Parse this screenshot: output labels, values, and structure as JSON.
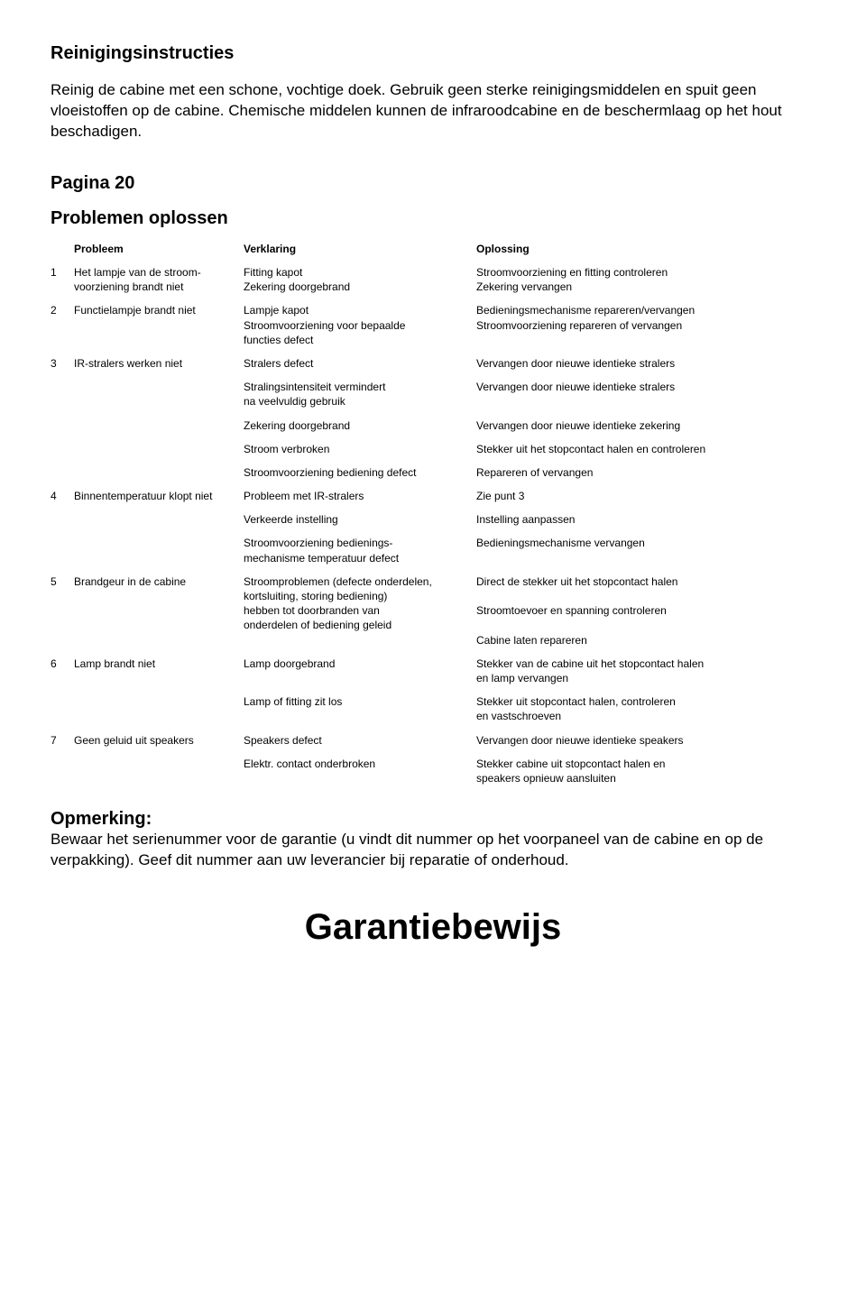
{
  "doc": {
    "title": "Reinigingsinstructies",
    "intro": "Reinig de cabine met een schone, vochtige doek. Gebruik geen sterke reinigingsmiddelen en spuit geen vloeistoffen op de cabine. Chemische middelen kunnen de infraroodcabine en de beschermlaag op het hout beschadigen.",
    "page_heading": "Pagina 20",
    "section_heading": "Problemen oplossen",
    "headers": {
      "problem": "Probleem",
      "explanation": "Verklaring",
      "solution": "Oplossing"
    },
    "rows": [
      {
        "n": "1",
        "problem": "Het lampje van de stroom-\nvoorziening brandt niet",
        "lines": [
          {
            "explanation": "Fitting kapot",
            "solution": "Stroomvoorziening en fitting controleren"
          },
          {
            "explanation": "Zekering doorgebrand",
            "solution": "Zekering vervangen"
          }
        ]
      },
      {
        "n": "2",
        "problem": "Functielampje brandt niet",
        "lines": [
          {
            "explanation": "Lampje kapot",
            "solution": "Bedieningsmechanisme repareren/vervangen"
          },
          {
            "explanation": "Stroomvoorziening voor bepaalde\nfuncties defect",
            "solution": "Stroomvoorziening repareren of vervangen"
          }
        ]
      },
      {
        "n": "3",
        "problem": "IR-stralers werken niet",
        "lines": [
          {
            "explanation": "Stralers defect",
            "solution": "Vervangen door nieuwe identieke stralers"
          }
        ],
        "sublines": [
          {
            "explanation": "Stralingsintensiteit vermindert\nna veelvuldig gebruik",
            "solution": "Vervangen door nieuwe identieke stralers"
          },
          {
            "explanation": "Zekering doorgebrand",
            "solution": "Vervangen door nieuwe identieke zekering"
          },
          {
            "explanation": "Stroom verbroken",
            "solution": "Stekker uit het stopcontact halen en controleren"
          },
          {
            "explanation": "Stroomvoorziening bediening defect",
            "solution": "Repareren of vervangen"
          }
        ]
      },
      {
        "n": "4",
        "problem": "Binnentemperatuur klopt niet",
        "lines": [
          {
            "explanation": "Probleem met IR-stralers",
            "solution": "Zie punt 3"
          }
        ],
        "sublines": [
          {
            "explanation": "Verkeerde instelling",
            "solution": "Instelling aanpassen"
          },
          {
            "explanation": "Stroomvoorziening bedienings-\nmechanisme temperatuur defect",
            "solution": "Bedieningsmechanisme vervangen"
          }
        ]
      },
      {
        "n": "5",
        "problem": "Brandgeur in de cabine",
        "lines": [
          {
            "explanation": "Stroomproblemen (defecte onderdelen,\nkortsluiting, storing bediening)\nhebben tot doorbranden van\nonderdelen of bediening geleid",
            "solution": "Direct de stekker uit het stopcontact halen\n\nStroomtoevoer en spanning controleren\n\nCabine laten repareren"
          }
        ]
      },
      {
        "n": "6",
        "problem": "Lamp brandt niet",
        "lines": [
          {
            "explanation": "Lamp doorgebrand",
            "solution": "Stekker van de cabine uit het stopcontact halen\nen lamp vervangen"
          }
        ],
        "sublines": [
          {
            "explanation": "Lamp of fitting zit los",
            "solution": "Stekker uit stopcontact halen, controleren\nen vastschroeven"
          }
        ]
      },
      {
        "n": "7",
        "problem": "Geen geluid uit speakers",
        "lines": [
          {
            "explanation": "Speakers defect",
            "solution": "Vervangen door nieuwe identieke speakers"
          }
        ],
        "sublines": [
          {
            "explanation": "Elektr. contact onderbroken",
            "solution": "Stekker cabine uit stopcontact halen en\nspeakers opnieuw aansluiten"
          }
        ]
      }
    ],
    "note_heading": "Opmerking:",
    "note_text": "Bewaar het serienummer voor de garantie (u vindt dit nummer op het voorpaneel van de cabine en op de verpakking). Geef dit nummer aan uw leverancier bij reparatie of onderhoud.",
    "warranty": "Garantiebewijs"
  },
  "style": {
    "background_color": "#ffffff",
    "text_color": "#000000",
    "title_fontsize": 20,
    "body_fontsize": 17,
    "table_fontsize": 12,
    "warranty_fontsize": 40
  }
}
